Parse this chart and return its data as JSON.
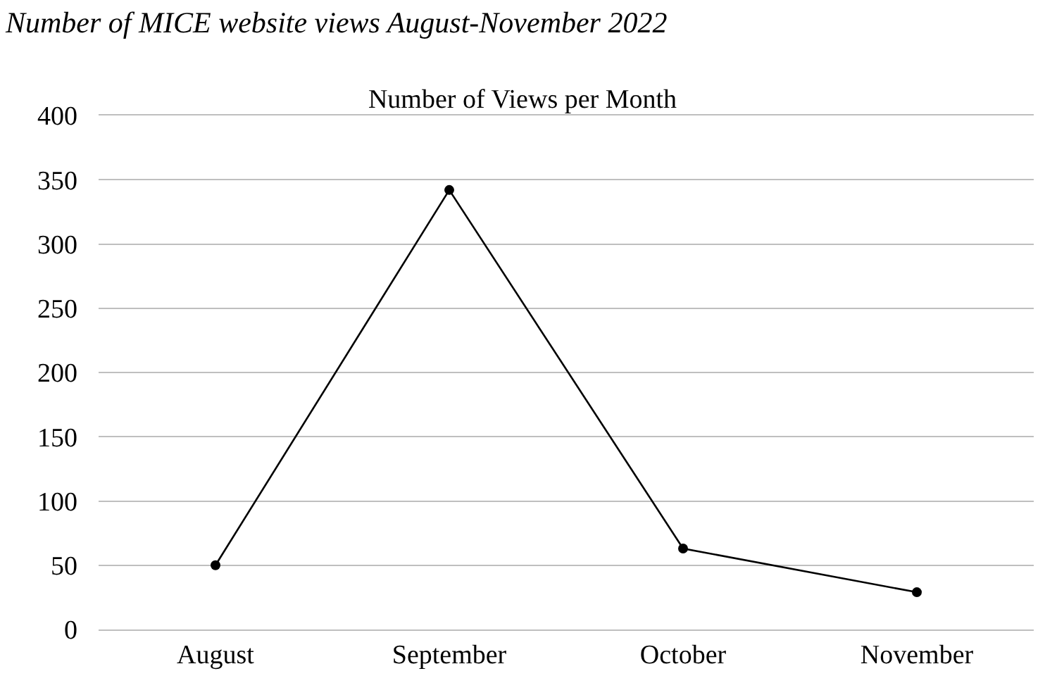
{
  "chart_data": {
    "type": "line",
    "title": "Number of MICE website views August-November 2022",
    "subtitle": "Number of Views per Month",
    "categories": [
      "August",
      "September",
      "October",
      "November"
    ],
    "series": [
      {
        "color": "#000000",
        "values": [
          50,
          342,
          63,
          29
        ]
      }
    ],
    "ylim": [
      0,
      400
    ],
    "yticks": [
      0,
      50,
      100,
      150,
      200,
      250,
      300,
      350,
      400
    ],
    "grid": "y",
    "marker": "circle",
    "line_style": "solid"
  }
}
